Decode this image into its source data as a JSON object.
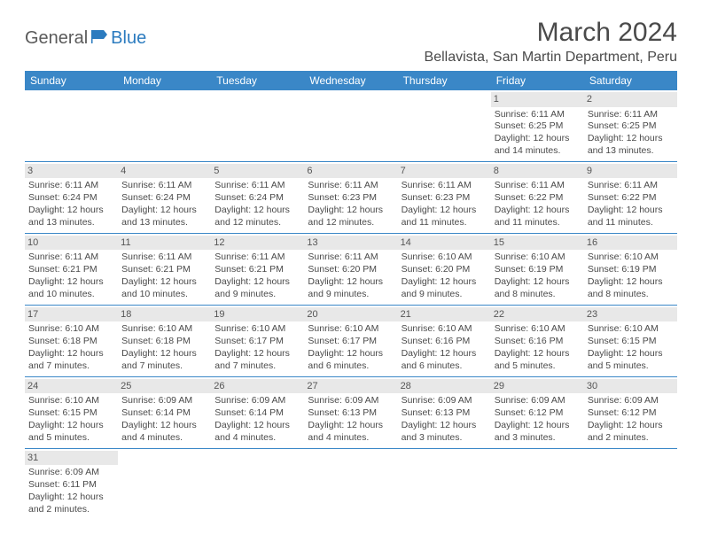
{
  "logo": {
    "part1": "General",
    "part2": "Blue"
  },
  "title": "March 2024",
  "location": "Bellavista, San Martin Department, Peru",
  "colors": {
    "header_bg": "#3a87c7",
    "header_text": "#ffffff",
    "daynum_bg": "#e8e8e8",
    "border": "#3a87c7",
    "text": "#4a4a4a",
    "logo_gray": "#5a5a5a",
    "logo_blue": "#2b7bbf"
  },
  "weekdays": [
    "Sunday",
    "Monday",
    "Tuesday",
    "Wednesday",
    "Thursday",
    "Friday",
    "Saturday"
  ],
  "weeks": [
    [
      null,
      null,
      null,
      null,
      null,
      {
        "n": "1",
        "sr": "6:11 AM",
        "ss": "6:25 PM",
        "dl1": "12 hours",
        "dl2": "and 14 minutes."
      },
      {
        "n": "2",
        "sr": "6:11 AM",
        "ss": "6:25 PM",
        "dl1": "12 hours",
        "dl2": "and 13 minutes."
      }
    ],
    [
      {
        "n": "3",
        "sr": "6:11 AM",
        "ss": "6:24 PM",
        "dl1": "12 hours",
        "dl2": "and 13 minutes."
      },
      {
        "n": "4",
        "sr": "6:11 AM",
        "ss": "6:24 PM",
        "dl1": "12 hours",
        "dl2": "and 13 minutes."
      },
      {
        "n": "5",
        "sr": "6:11 AM",
        "ss": "6:24 PM",
        "dl1": "12 hours",
        "dl2": "and 12 minutes."
      },
      {
        "n": "6",
        "sr": "6:11 AM",
        "ss": "6:23 PM",
        "dl1": "12 hours",
        "dl2": "and 12 minutes."
      },
      {
        "n": "7",
        "sr": "6:11 AM",
        "ss": "6:23 PM",
        "dl1": "12 hours",
        "dl2": "and 11 minutes."
      },
      {
        "n": "8",
        "sr": "6:11 AM",
        "ss": "6:22 PM",
        "dl1": "12 hours",
        "dl2": "and 11 minutes."
      },
      {
        "n": "9",
        "sr": "6:11 AM",
        "ss": "6:22 PM",
        "dl1": "12 hours",
        "dl2": "and 11 minutes."
      }
    ],
    [
      {
        "n": "10",
        "sr": "6:11 AM",
        "ss": "6:21 PM",
        "dl1": "12 hours",
        "dl2": "and 10 minutes."
      },
      {
        "n": "11",
        "sr": "6:11 AM",
        "ss": "6:21 PM",
        "dl1": "12 hours",
        "dl2": "and 10 minutes."
      },
      {
        "n": "12",
        "sr": "6:11 AM",
        "ss": "6:21 PM",
        "dl1": "12 hours",
        "dl2": "and 9 minutes."
      },
      {
        "n": "13",
        "sr": "6:11 AM",
        "ss": "6:20 PM",
        "dl1": "12 hours",
        "dl2": "and 9 minutes."
      },
      {
        "n": "14",
        "sr": "6:10 AM",
        "ss": "6:20 PM",
        "dl1": "12 hours",
        "dl2": "and 9 minutes."
      },
      {
        "n": "15",
        "sr": "6:10 AM",
        "ss": "6:19 PM",
        "dl1": "12 hours",
        "dl2": "and 8 minutes."
      },
      {
        "n": "16",
        "sr": "6:10 AM",
        "ss": "6:19 PM",
        "dl1": "12 hours",
        "dl2": "and 8 minutes."
      }
    ],
    [
      {
        "n": "17",
        "sr": "6:10 AM",
        "ss": "6:18 PM",
        "dl1": "12 hours",
        "dl2": "and 7 minutes."
      },
      {
        "n": "18",
        "sr": "6:10 AM",
        "ss": "6:18 PM",
        "dl1": "12 hours",
        "dl2": "and 7 minutes."
      },
      {
        "n": "19",
        "sr": "6:10 AM",
        "ss": "6:17 PM",
        "dl1": "12 hours",
        "dl2": "and 7 minutes."
      },
      {
        "n": "20",
        "sr": "6:10 AM",
        "ss": "6:17 PM",
        "dl1": "12 hours",
        "dl2": "and 6 minutes."
      },
      {
        "n": "21",
        "sr": "6:10 AM",
        "ss": "6:16 PM",
        "dl1": "12 hours",
        "dl2": "and 6 minutes."
      },
      {
        "n": "22",
        "sr": "6:10 AM",
        "ss": "6:16 PM",
        "dl1": "12 hours",
        "dl2": "and 5 minutes."
      },
      {
        "n": "23",
        "sr": "6:10 AM",
        "ss": "6:15 PM",
        "dl1": "12 hours",
        "dl2": "and 5 minutes."
      }
    ],
    [
      {
        "n": "24",
        "sr": "6:10 AM",
        "ss": "6:15 PM",
        "dl1": "12 hours",
        "dl2": "and 5 minutes."
      },
      {
        "n": "25",
        "sr": "6:09 AM",
        "ss": "6:14 PM",
        "dl1": "12 hours",
        "dl2": "and 4 minutes."
      },
      {
        "n": "26",
        "sr": "6:09 AM",
        "ss": "6:14 PM",
        "dl1": "12 hours",
        "dl2": "and 4 minutes."
      },
      {
        "n": "27",
        "sr": "6:09 AM",
        "ss": "6:13 PM",
        "dl1": "12 hours",
        "dl2": "and 4 minutes."
      },
      {
        "n": "28",
        "sr": "6:09 AM",
        "ss": "6:13 PM",
        "dl1": "12 hours",
        "dl2": "and 3 minutes."
      },
      {
        "n": "29",
        "sr": "6:09 AM",
        "ss": "6:12 PM",
        "dl1": "12 hours",
        "dl2": "and 3 minutes."
      },
      {
        "n": "30",
        "sr": "6:09 AM",
        "ss": "6:12 PM",
        "dl1": "12 hours",
        "dl2": "and 2 minutes."
      }
    ],
    [
      {
        "n": "31",
        "sr": "6:09 AM",
        "ss": "6:11 PM",
        "dl1": "12 hours",
        "dl2": "and 2 minutes."
      },
      null,
      null,
      null,
      null,
      null,
      null
    ]
  ],
  "labels": {
    "sunrise": "Sunrise:",
    "sunset": "Sunset:",
    "daylight": "Daylight:"
  }
}
